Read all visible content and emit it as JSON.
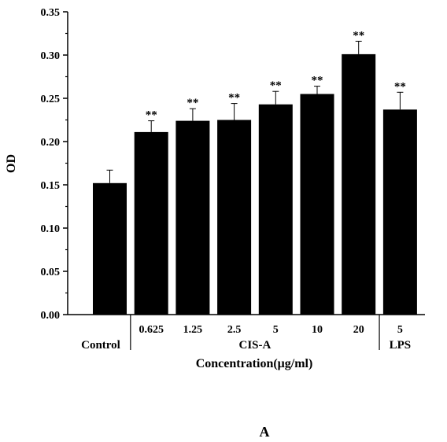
{
  "chart_data": {
    "type": "bar",
    "ylabel": "OD",
    "xlabel": "Concentration(μg/ml)",
    "ylim": [
      0,
      0.35
    ],
    "yticks": [
      "0.00",
      "0.05",
      "0.10",
      "0.15",
      "0.20",
      "0.25",
      "0.30",
      "0.35"
    ],
    "categories": [
      "",
      "0.625",
      "1.25",
      "2.5",
      "5",
      "10",
      "20",
      "5"
    ],
    "values": [
      0.152,
      0.211,
      0.224,
      0.225,
      0.243,
      0.255,
      0.301,
      0.237
    ],
    "errors": [
      0.015,
      0.013,
      0.014,
      0.019,
      0.015,
      0.009,
      0.015,
      0.02
    ],
    "significance": [
      "",
      "**",
      "**",
      "**",
      "**",
      "**",
      "**",
      "**"
    ],
    "groups": [
      {
        "label": "Control",
        "start": 0,
        "end": 0
      },
      {
        "label": "CIS-A",
        "start": 1,
        "end": 6
      },
      {
        "label": "LPS",
        "start": 7,
        "end": 7
      }
    ],
    "bar_color": "#000000",
    "grid": false,
    "legend": "none"
  },
  "panel_label": "A"
}
